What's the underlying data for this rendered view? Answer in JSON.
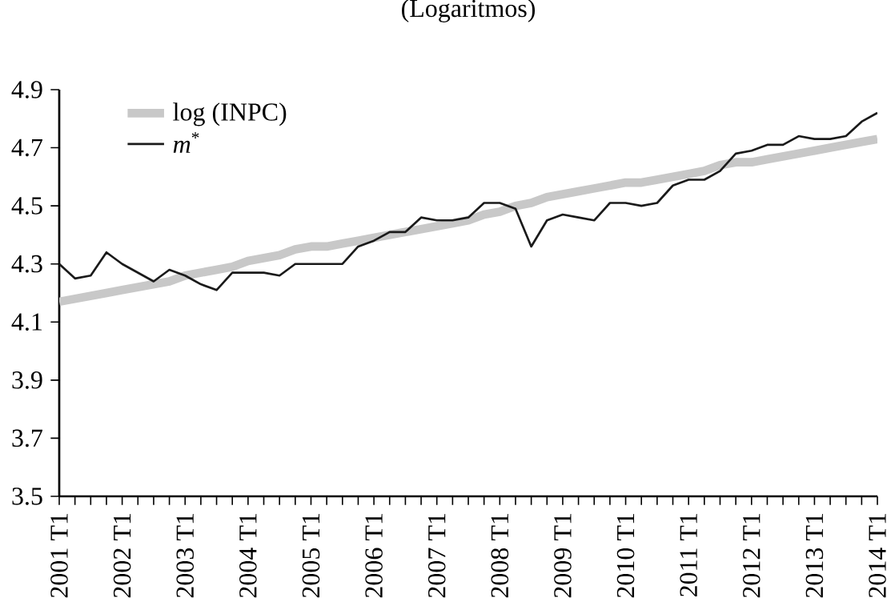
{
  "chart_data": {
    "type": "line",
    "title": "(Logaritmos)",
    "categories": [
      "2001 T1",
      null,
      null,
      null,
      "2002 T1",
      null,
      null,
      null,
      "2003 T1",
      null,
      null,
      null,
      "2004 T1",
      null,
      null,
      null,
      "2005 T1",
      null,
      null,
      null,
      "2006 T1",
      null,
      null,
      null,
      "2007 T1",
      null,
      null,
      null,
      "2008 T1",
      null,
      null,
      null,
      "2009 T1",
      null,
      null,
      null,
      "2010 T1",
      null,
      null,
      null,
      "2011 T1",
      null,
      null,
      null,
      "2012 T1",
      null,
      null,
      null,
      "2013 T1",
      null,
      null,
      null,
      "2014 T1"
    ],
    "series": [
      {
        "name": "log (INPC)",
        "color": "#c8c8c8",
        "values": [
          4.17,
          4.18,
          4.19,
          4.2,
          4.21,
          4.22,
          4.23,
          4.24,
          4.26,
          4.27,
          4.28,
          4.29,
          4.31,
          4.32,
          4.33,
          4.35,
          4.36,
          4.36,
          4.37,
          4.38,
          4.39,
          4.4,
          4.41,
          4.42,
          4.43,
          4.44,
          4.45,
          4.47,
          4.48,
          4.5,
          4.51,
          4.53,
          4.54,
          4.55,
          4.56,
          4.57,
          4.58,
          4.58,
          4.59,
          4.6,
          4.61,
          4.62,
          4.64,
          4.65,
          4.65,
          4.66,
          4.67,
          4.68,
          4.69,
          4.7,
          4.71,
          4.72,
          4.73
        ]
      },
      {
        "name": "*m*$^{*}$",
        "color": "#1a1a1a",
        "values": [
          4.3,
          4.25,
          4.26,
          4.34,
          4.3,
          4.27,
          4.24,
          4.28,
          4.26,
          4.23,
          4.21,
          4.27,
          4.27,
          4.27,
          4.26,
          4.3,
          4.3,
          4.3,
          4.3,
          4.36,
          4.38,
          4.41,
          4.41,
          4.46,
          4.45,
          4.45,
          4.46,
          4.51,
          4.51,
          4.49,
          4.36,
          4.45,
          4.47,
          4.46,
          4.45,
          4.51,
          4.51,
          4.5,
          4.51,
          4.57,
          4.59,
          4.59,
          4.62,
          4.68,
          4.69,
          4.71,
          4.71,
          4.74,
          4.73,
          4.73,
          4.74,
          4.79,
          4.82
        ]
      }
    ],
    "ylim": [
      3.5,
      4.9
    ],
    "yticks": [
      3.5,
      3.7,
      3.9,
      4.1,
      4.3,
      4.5,
      4.7,
      4.9
    ],
    "legend": "top left",
    "grid": false,
    "marker": "none",
    "line_style": "solid"
  }
}
